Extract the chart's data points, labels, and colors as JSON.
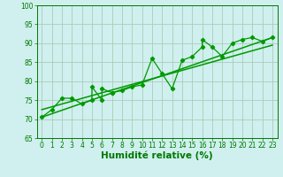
{
  "xlabel": "Humidité relative (%)",
  "bg_color": "#cff0ee",
  "grid_color": "#aaccbb",
  "line_color": "#009900",
  "xlim": [
    -0.5,
    23.5
  ],
  "ylim": [
    65,
    100
  ],
  "xticks": [
    0,
    1,
    2,
    3,
    4,
    5,
    6,
    7,
    8,
    9,
    10,
    11,
    12,
    13,
    14,
    15,
    16,
    17,
    18,
    19,
    20,
    21,
    22,
    23
  ],
  "yticks": [
    65,
    70,
    75,
    80,
    85,
    90,
    95,
    100
  ],
  "data_x": [
    0,
    1,
    2,
    3,
    4,
    5,
    5,
    6,
    6,
    7,
    7,
    8,
    9,
    10,
    11,
    12,
    13,
    14,
    15,
    16,
    16,
    17,
    18,
    19,
    20,
    21,
    22,
    23
  ],
  "data_y": [
    70.5,
    72.5,
    75.5,
    75.5,
    74,
    75,
    78.5,
    75,
    78,
    77,
    77,
    77.5,
    78.5,
    79,
    86,
    82,
    78,
    85.5,
    86.5,
    89,
    91,
    89,
    86.5,
    90,
    91,
    91.5,
    90.5,
    91.5
  ],
  "line1_x": [
    0,
    23
  ],
  "line1_y": [
    70.5,
    91.5
  ],
  "line2_x": [
    0,
    23
  ],
  "line2_y": [
    72.5,
    89.5
  ],
  "font_color": "#007700",
  "tick_fontsize": 5.5,
  "label_fontsize": 7.5
}
